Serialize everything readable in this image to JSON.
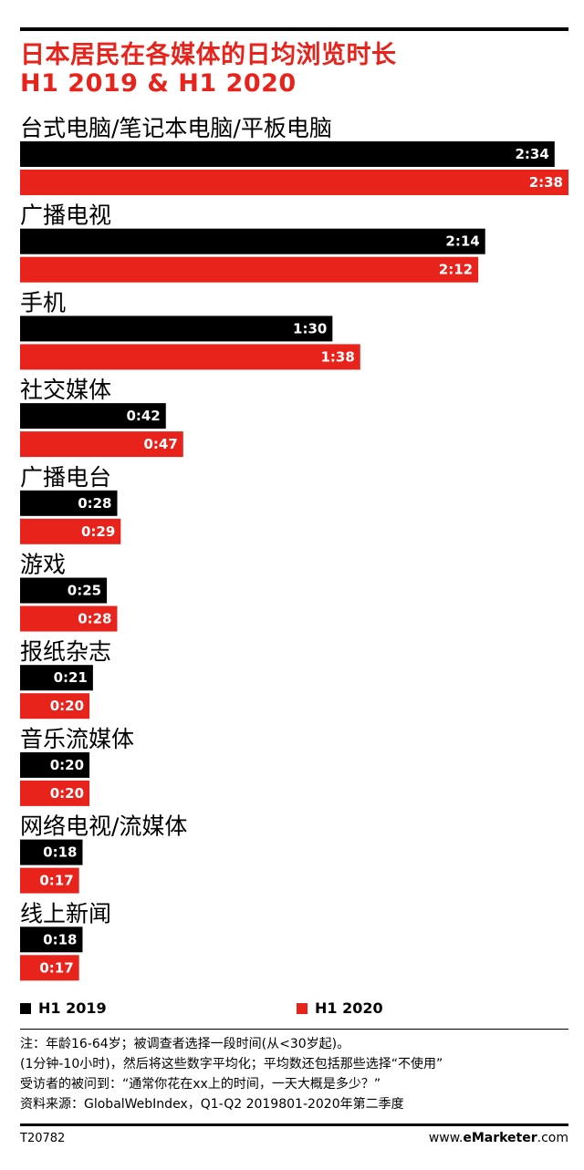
{
  "title_line1": "日本居民在各媒体的日均浏览时长",
  "title_line2": "H1 2019 & H1 2020",
  "chart_data": {
    "type": "bar",
    "orientation": "horizontal",
    "value_unit": "h:mm",
    "categories": [
      "台式电脑/笔记本电脑/平板电脑",
      "广播电视",
      "手机",
      "社交媒体",
      "广播电台",
      "游戏",
      "报纸杂志",
      "音乐流媒体",
      "网络电视/流媒体",
      "线上新闻"
    ],
    "series": [
      {
        "name": "H1 2019",
        "color": "#000000",
        "labels": [
          "2:34",
          "2:14",
          "1:30",
          "0:42",
          "0:28",
          "0:25",
          "0:21",
          "0:20",
          "0:18",
          "0:18"
        ],
        "values_minutes": [
          154,
          134,
          90,
          42,
          28,
          25,
          21,
          20,
          18,
          18
        ]
      },
      {
        "name": "H1 2020",
        "color": "#e8231c",
        "labels": [
          "2:38",
          "2:12",
          "1:38",
          "0:47",
          "0:29",
          "0:28",
          "0:20",
          "0:20",
          "0:17",
          "0:17"
        ],
        "values_minutes": [
          158,
          132,
          98,
          47,
          29,
          28,
          20,
          20,
          17,
          17
        ]
      }
    ],
    "legend_position": "bottom",
    "grid": false
  },
  "legend": {
    "s1": "H1 2019",
    "s2": "H1 2020"
  },
  "notes": [
    "注：年龄16-64岁；被调查者选择一段时间(从<30岁起)。",
    "(1分钟-10小时)，然后将这些数字平均化；平均数还包括那些选择“不使用”",
    "受访者的被问到：“通常你花在xx上的时间，一天大概是多少？”",
    "资料来源：GlobalWebIndex，Q1-Q2 2019801-2020年第二季度"
  ],
  "footer": {
    "code": "T20782",
    "brand_prefix": "www.",
    "brand_bold": "eMarketer",
    "brand_suffix": ".com"
  }
}
